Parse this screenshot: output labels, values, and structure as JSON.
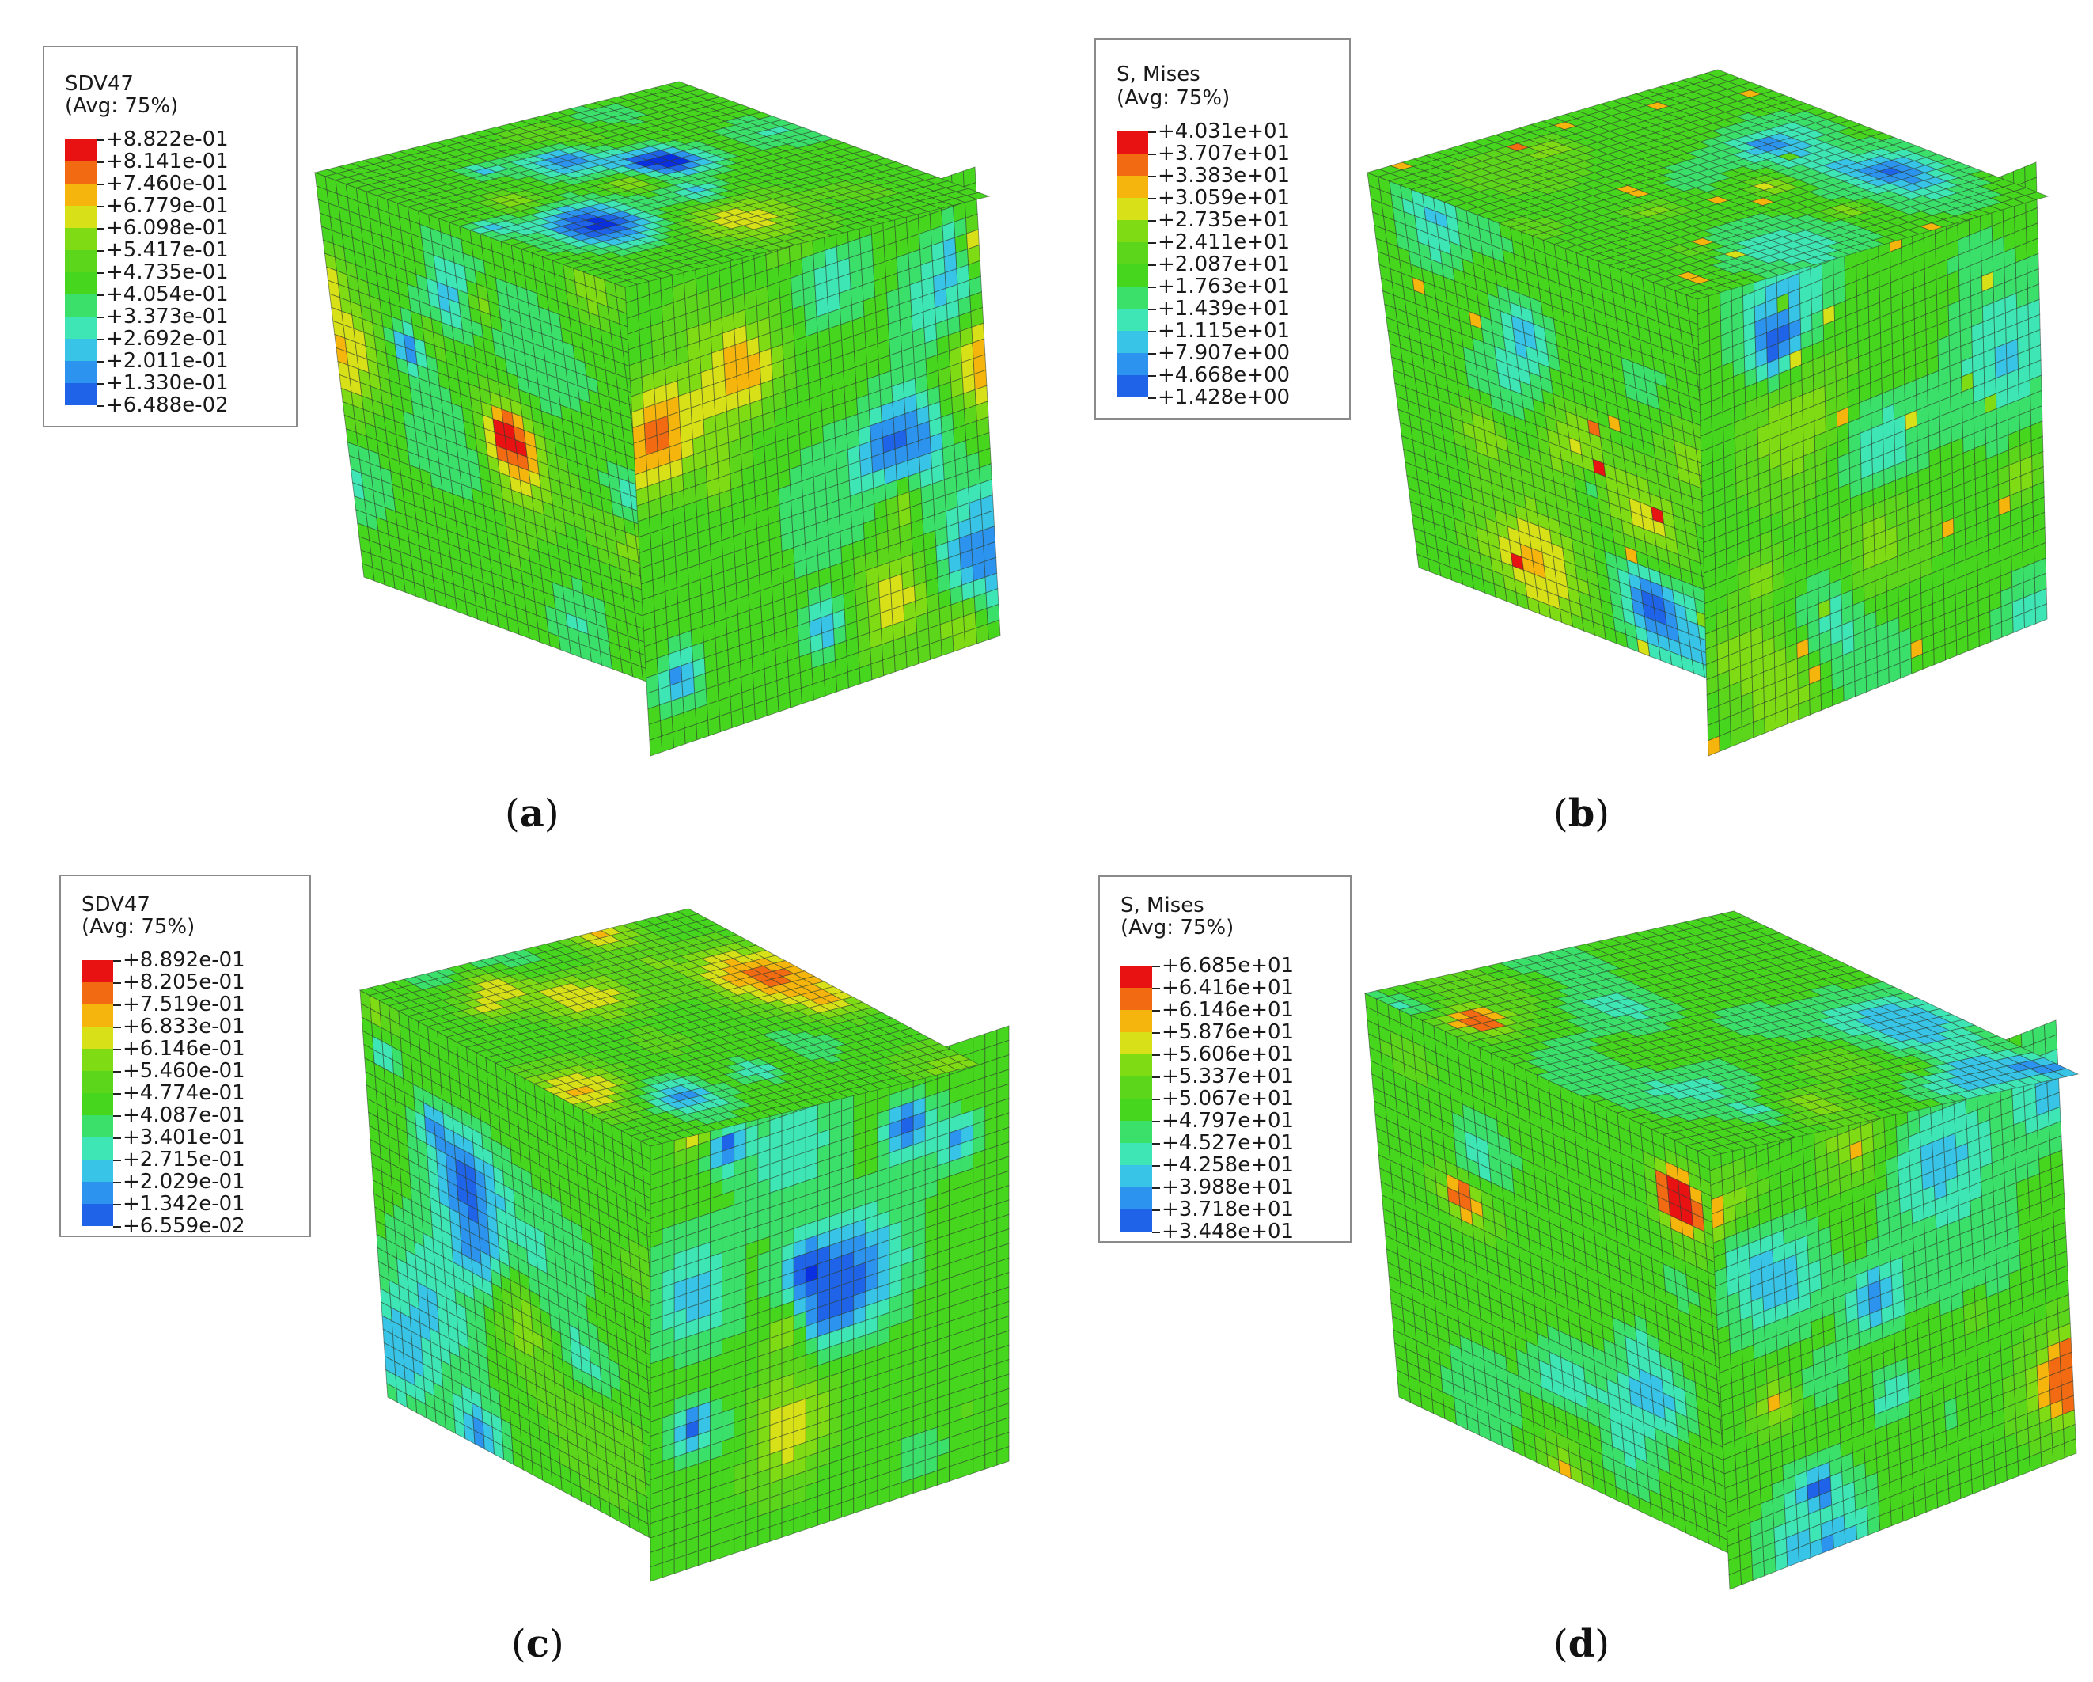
{
  "colors": {
    "grid_line": "#2a3a2a",
    "contour_scale": [
      "#0a2fe0",
      "#1f63e8",
      "#2c94ee",
      "#37c4e6",
      "#3de6b4",
      "#3be06a",
      "#46d61e",
      "#5cd61a",
      "#7fdc14",
      "#d8e018",
      "#f6b50c",
      "#f26a12",
      "#e81212"
    ]
  },
  "panels": [
    {
      "id": "a",
      "legend": {
        "title_line1": "SDV47",
        "title_line2": "(Avg: 75%)",
        "values": [
          "+8.822e-01",
          "+8.141e-01",
          "+7.460e-01",
          "+6.779e-01",
          "+6.098e-01",
          "+5.417e-01",
          "+4.735e-01",
          "+4.054e-01",
          "+3.373e-01",
          "+2.692e-01",
          "+2.011e-01",
          "+1.330e-01",
          "+6.488e-02"
        ]
      },
      "caption_label": "a"
    },
    {
      "id": "b",
      "legend": {
        "title_line1": "S, Mises",
        "title_line2": "(Avg: 75%)",
        "values": [
          "+4.031e+01",
          "+3.707e+01",
          "+3.383e+01",
          "+3.059e+01",
          "+2.735e+01",
          "+2.411e+01",
          "+2.087e+01",
          "+1.763e+01",
          "+1.439e+01",
          "+1.115e+01",
          "+7.907e+00",
          "+4.668e+00",
          "+1.428e+00"
        ]
      },
      "caption_label": "b"
    },
    {
      "id": "c",
      "legend": {
        "title_line1": "SDV47",
        "title_line2": "(Avg: 75%)",
        "values": [
          "+8.892e-01",
          "+8.205e-01",
          "+7.519e-01",
          "+6.833e-01",
          "+6.146e-01",
          "+5.460e-01",
          "+4.774e-01",
          "+4.087e-01",
          "+3.401e-01",
          "+2.715e-01",
          "+2.029e-01",
          "+1.342e-01",
          "+6.559e-02"
        ]
      },
      "caption_label": "c"
    },
    {
      "id": "d",
      "legend": {
        "title_line1": "S, Mises",
        "title_line2": "(Avg: 75%)",
        "values": [
          "+6.685e+01",
          "+6.416e+01",
          "+6.146e+01",
          "+5.876e+01",
          "+5.606e+01",
          "+5.337e+01",
          "+5.067e+01",
          "+4.797e+01",
          "+4.527e+01",
          "+4.258e+01",
          "+3.988e+01",
          "+3.718e+01",
          "+3.448e+01"
        ]
      },
      "caption_label": "d"
    }
  ]
}
